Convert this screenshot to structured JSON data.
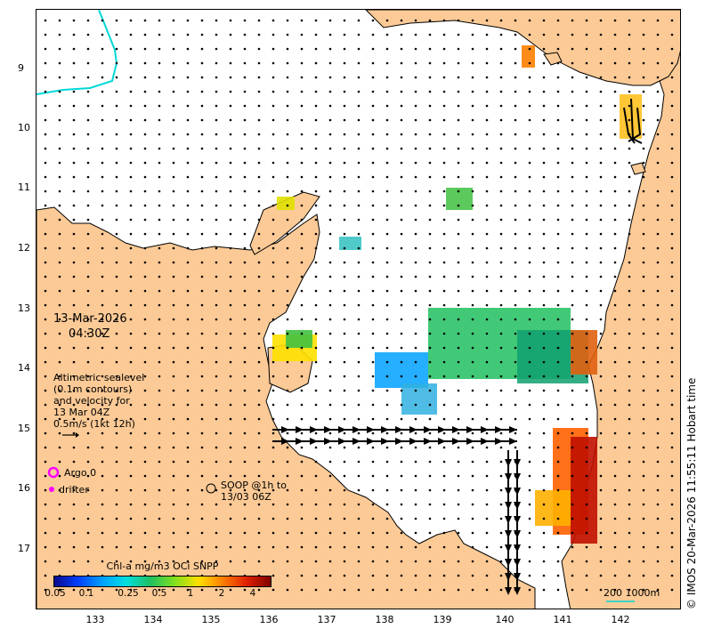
{
  "map": {
    "date": "13-Mar-2026",
    "time": "04:30Z",
    "sealevel_text": [
      "Altimetric sealevel",
      "(0.1m contours)",
      "and velocity for",
      "13 Mar 04Z",
      "0.5m/s (1kt 12h)"
    ],
    "legend": {
      "argo": "Argo 0",
      "drifter": "drifter",
      "soop": [
        "SOOP @1h to",
        "13/03 06Z"
      ]
    },
    "scale_label": "200  1000m",
    "credit": "© IMOS 20-Mar-2026 11:55:11 Hobart time",
    "latitudes": [
      "9",
      "10",
      "11",
      "12",
      "13",
      "14",
      "15",
      "16",
      "17"
    ],
    "longitudes": [
      "133",
      "134",
      "135",
      "136",
      "137",
      "138",
      "139",
      "140",
      "141",
      "142"
    ],
    "colors": {
      "land": "#fcca96",
      "ocean": "#ffffff",
      "contour": "#00d8d8",
      "argo": "#ff00ff",
      "arrow": "#000000"
    }
  },
  "colorbar": {
    "title": "Chl-a mg/m3 OCi SNPP",
    "ticks": [
      "0.05",
      "0.1",
      "0.25",
      "0.5",
      "1",
      "2",
      "4"
    ],
    "tick_values": [
      0.05,
      0.1,
      0.25,
      0.5,
      1,
      2,
      4
    ],
    "colors": [
      "#0a0a8c",
      "#0040ff",
      "#00a0ff",
      "#00e0e0",
      "#20c060",
      "#80e020",
      "#ffe000",
      "#ff8000",
      "#e02000",
      "#800000"
    ]
  }
}
